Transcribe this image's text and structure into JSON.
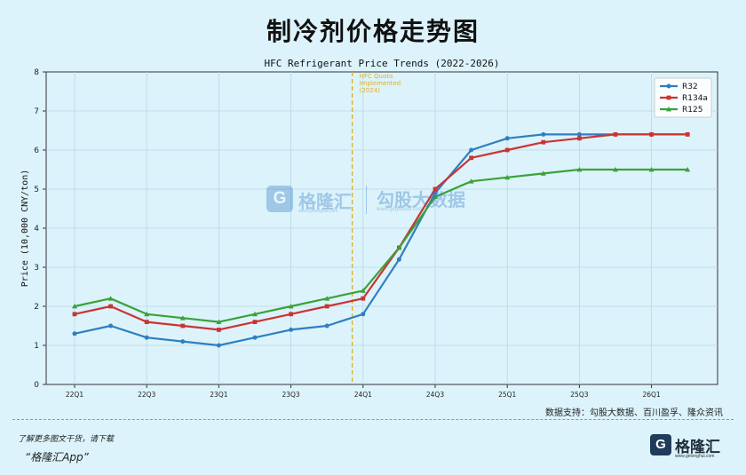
{
  "header": {
    "title": "制冷剂价格走势图"
  },
  "chart_data": {
    "type": "line",
    "title": "HFC Refrigerant Price Trends (2022-2026)",
    "ylabel": "Price (10,000 CNY/ton)",
    "xlabel": "",
    "ylim": [
      0,
      8
    ],
    "yticks": [
      0,
      1,
      2,
      3,
      4,
      5,
      6,
      7,
      8
    ],
    "grid": true,
    "legend_position": "top-right",
    "x": [
      "22Q1",
      "22Q2",
      "22Q3",
      "22Q4",
      "23Q1",
      "23Q2",
      "23Q3",
      "23Q4",
      "24Q1",
      "24Q2",
      "24Q3",
      "24Q4",
      "25Q1",
      "25Q2",
      "25Q3",
      "25Q4",
      "26Q1",
      "26Q2"
    ],
    "xtick_labels": [
      "22Q1",
      "22Q3",
      "23Q1",
      "23Q3",
      "24Q1",
      "24Q3",
      "25Q1",
      "25Q3",
      "26Q1"
    ],
    "series": [
      {
        "name": "R32",
        "color": "#2f7fc1",
        "marker": "circle",
        "values": [
          1.3,
          1.5,
          1.2,
          1.1,
          1.0,
          1.2,
          1.4,
          1.5,
          1.8,
          3.2,
          4.9,
          6.0,
          6.3,
          6.4,
          6.4,
          6.4,
          6.4,
          6.4
        ]
      },
      {
        "name": "R134a",
        "color": "#cc3333",
        "marker": "square",
        "values": [
          1.8,
          2.0,
          1.6,
          1.5,
          1.4,
          1.6,
          1.8,
          2.0,
          2.2,
          3.5,
          5.0,
          5.8,
          6.0,
          6.2,
          6.3,
          6.4,
          6.4,
          6.4
        ]
      },
      {
        "name": "R125",
        "color": "#3aa23a",
        "marker": "triangle",
        "values": [
          2.0,
          2.2,
          1.8,
          1.7,
          1.6,
          1.8,
          2.0,
          2.2,
          2.4,
          3.5,
          4.8,
          5.2,
          5.3,
          5.4,
          5.5,
          5.5,
          5.5,
          5.5
        ]
      }
    ],
    "annotation": {
      "x": "23Q4",
      "x_offset": 0.7,
      "lines": [
        "HFC Quota",
        "Implemented",
        "(2024)"
      ],
      "color": "#e0b020"
    }
  },
  "source_note": "数据支持：勾股大数据、百川盈孚、隆众资讯",
  "footer": {
    "hint": "了解更多图文干货，请下载",
    "app": "“格隆汇App”",
    "logo_mark": "G",
    "logo_name": "格隆汇",
    "logo_url": "www.gelonghui.com"
  },
  "watermark": {
    "mark": "G",
    "name1": "格隆汇",
    "url1": "www.gelonghui.com",
    "name2": "勾股大数据",
    "url2": "www.gogudata.com"
  }
}
